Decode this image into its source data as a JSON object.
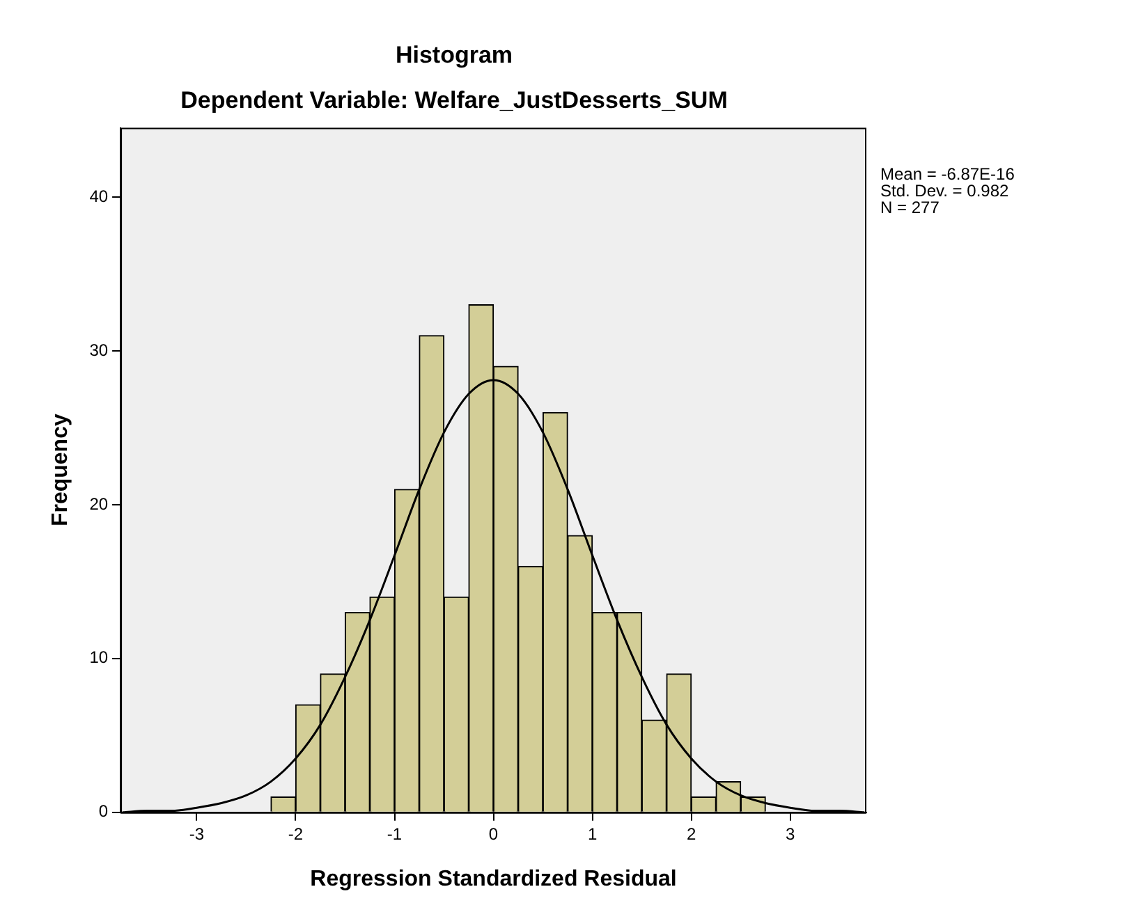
{
  "chart_data": {
    "type": "histogram",
    "title": "Histogram",
    "subtitle": "Dependent Variable: Welfare_JustDesserts_SUM",
    "xlabel": "Regression Standardized Residual",
    "ylabel": "Frequency",
    "bins": [
      -2.25,
      -2.0,
      -1.75,
      -1.5,
      -1.25,
      -1.0,
      -0.75,
      -0.5,
      -0.25,
      0.0,
      0.25,
      0.5,
      0.75,
      1.0,
      1.25,
      1.5,
      1.75,
      2.0,
      2.25,
      2.5,
      2.75
    ],
    "values": [
      1,
      7,
      9,
      13,
      14,
      21,
      31,
      14,
      33,
      29,
      16,
      26,
      18,
      13,
      13,
      6,
      9,
      1,
      2,
      1
    ],
    "color": "#d3ce97",
    "series": [
      {
        "type": "line",
        "color": "#000000",
        "x": [
          -3.75,
          -3.5,
          -3.25,
          -3.0,
          -2.75,
          -2.5,
          -2.25,
          -2.0,
          -1.75,
          -1.5,
          -1.25,
          -1.0,
          -0.75,
          -0.5,
          -0.25,
          0.0,
          0.25,
          0.5,
          0.75,
          1.0,
          1.25,
          1.5,
          1.75,
          2.0,
          2.25,
          2.5,
          2.75,
          3.0,
          3.25,
          3.5,
          3.75
        ],
        "values": [
          0,
          0.1,
          0.1,
          0.3,
          0.6,
          1.1,
          2.0,
          3.5,
          5.7,
          8.8,
          12.5,
          16.7,
          21.0,
          24.7,
          27.2,
          28.1,
          27.2,
          24.7,
          21.0,
          16.7,
          12.5,
          8.8,
          5.7,
          3.5,
          2.0,
          1.1,
          0.6,
          0.3,
          0.1,
          0.1,
          0
        ]
      }
    ],
    "xlim": [
      -3.77,
      3.77
    ],
    "xticks": [
      -3,
      -2,
      -1,
      0,
      1,
      2,
      3
    ],
    "ylim": [
      0,
      44.5
    ],
    "yticks": [
      0,
      10,
      20,
      30,
      40
    ],
    "grid": false,
    "legend": false,
    "marker": "none",
    "line_style": "solid",
    "annotations": [
      "Mean = -6.87E-16",
      "Std. Dev. = 0.982",
      "N = 277"
    ]
  }
}
